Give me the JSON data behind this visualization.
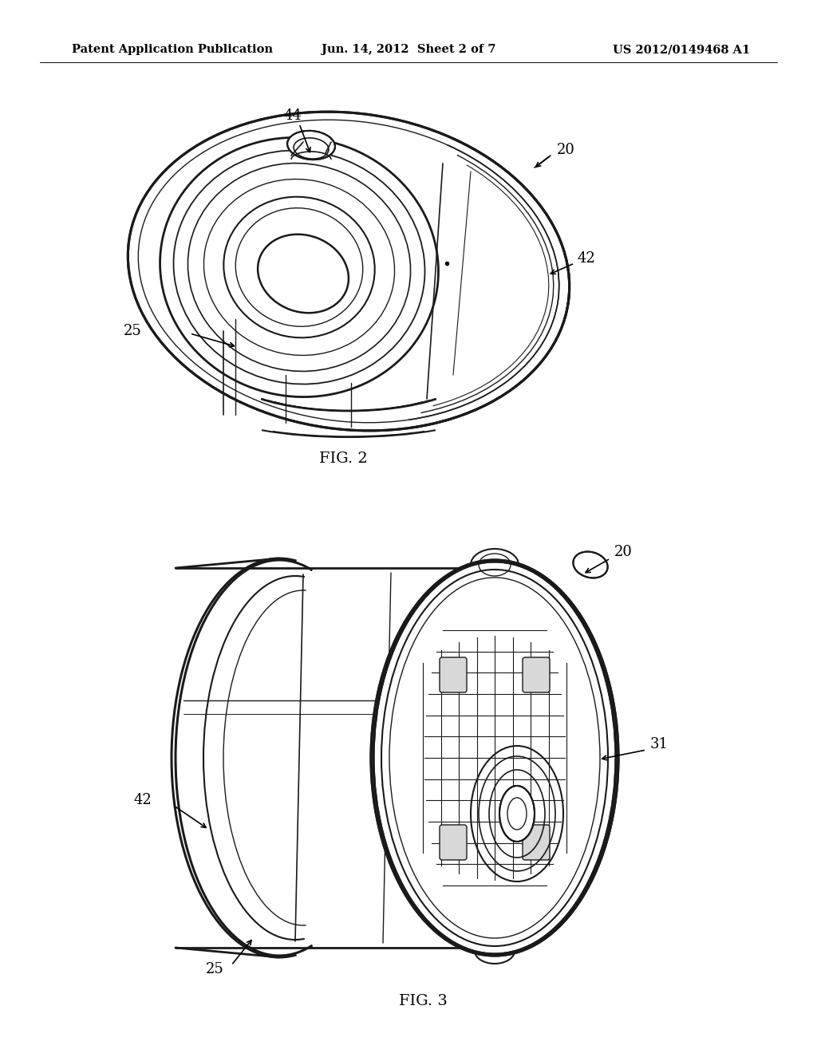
{
  "background_color": "#ffffff",
  "header": {
    "left": "Patent Application Publication",
    "center": "Jun. 14, 2012  Sheet 2 of 7",
    "right": "US 2012/0149468 A1",
    "fontsize": 10.5,
    "font": "DejaVu Serif"
  },
  "fig2_label": "FIG. 2",
  "fig3_label": "FIG. 3",
  "line_color": "#1a1a1a"
}
